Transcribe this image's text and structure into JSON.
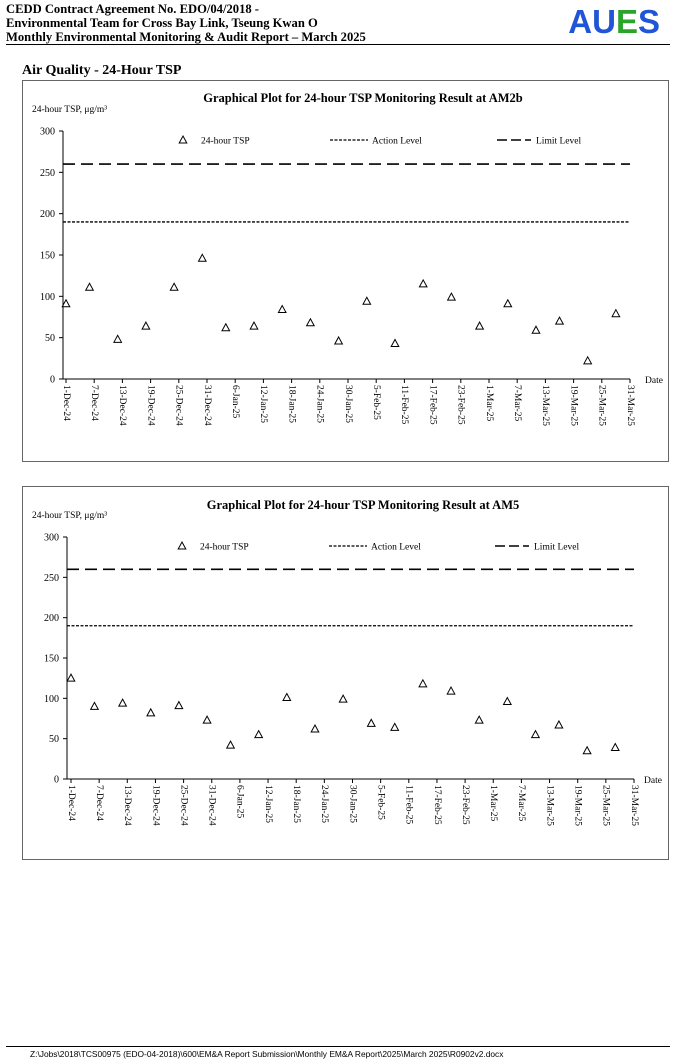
{
  "header": {
    "line1": "CEDD Contract Agreement No. EDO/04/2018 -",
    "line2": "Environmental Team for Cross Bay Link, Tseung Kwan O",
    "line3": "Monthly Environmental Monitoring & Audit Report – March 2025",
    "logo": {
      "letters": [
        "A",
        "U",
        "E",
        "S"
      ],
      "colors": [
        "#1f55d6",
        "#1f55d6",
        "#2aa52a",
        "#1f55d6"
      ]
    }
  },
  "section_title": "Air Quality - 24-Hour TSP",
  "footer": "Z:\\Jobs\\2018\\TCS00975 (EDO-04-2018)\\600\\EM&A Report Submission\\Monthly EM&A Report\\2025\\March 2025\\R0902v2.docx",
  "chart_data": [
    {
      "type": "scatter",
      "title": "Graphical Plot for 24-hour TSP Monitoring Result at AM2b",
      "ylabel": "24-hour TSP, μg/m³",
      "xlabel": "Date",
      "ylim": [
        0,
        300
      ],
      "yticks": [
        0,
        50,
        100,
        150,
        200,
        250,
        300
      ],
      "x_range": [
        "1-Dec-24",
        "31-Mar-25"
      ],
      "xtick_labels": [
        "1-Dec-24",
        "7-Dec-24",
        "13-Dec-24",
        "19-Dec-24",
        "25-Dec-24",
        "31-Dec-24",
        "6-Jan-25",
        "12-Jan-25",
        "18-Jan-25",
        "24-Jan-25",
        "30-Jan-25",
        "5-Feb-25",
        "11-Feb-25",
        "17-Feb-25",
        "23-Feb-25",
        "1-Mar-25",
        "7-Mar-25",
        "13-Mar-25",
        "19-Mar-25",
        "25-Mar-25",
        "31-Mar-25"
      ],
      "legend": [
        "24-hour TSP",
        "Action Level",
        "Limit Level"
      ],
      "action_level": 190,
      "limit_level": 260,
      "series": [
        {
          "name": "24-hour TSP",
          "x": [
            "1-Dec-24",
            "6-Dec-24",
            "12-Dec-24",
            "18-Dec-24",
            "24-Dec-24",
            "30-Dec-24",
            "4-Jan-25",
            "10-Jan-25",
            "16-Jan-25",
            "22-Jan-25",
            "28-Jan-25",
            "3-Feb-25",
            "9-Feb-25",
            "15-Feb-25",
            "21-Feb-25",
            "27-Feb-25",
            "5-Mar-25",
            "11-Mar-25",
            "16-Mar-25",
            "22-Mar-25",
            "28-Mar-25"
          ],
          "values": [
            91,
            111,
            48,
            64,
            111,
            146,
            62,
            64,
            84,
            68,
            46,
            94,
            43,
            115,
            99,
            64,
            91,
            59,
            70,
            22,
            79
          ]
        }
      ]
    },
    {
      "type": "scatter",
      "title": "Graphical Plot for 24-hour TSP Monitoring Result at AM5",
      "ylabel": "24-hour TSP, μg/m³",
      "xlabel": "Date",
      "ylim": [
        0,
        300
      ],
      "yticks": [
        0,
        50,
        100,
        150,
        200,
        250,
        300
      ],
      "x_range": [
        "1-Dec-24",
        "31-Mar-25"
      ],
      "xtick_labels": [
        "1-Dec-24",
        "7-Dec-24",
        "13-Dec-24",
        "19-Dec-24",
        "25-Dec-24",
        "31-Dec-24",
        "6-Jan-25",
        "12-Jan-25",
        "18-Jan-25",
        "24-Jan-25",
        "30-Jan-25",
        "5-Feb-25",
        "11-Feb-25",
        "17-Feb-25",
        "23-Feb-25",
        "1-Mar-25",
        "7-Mar-25",
        "13-Mar-25",
        "19-Mar-25",
        "25-Mar-25",
        "31-Mar-25"
      ],
      "legend": [
        "24-hour TSP",
        "Action Level",
        "Limit Level"
      ],
      "action_level": 190,
      "limit_level": 260,
      "series": [
        {
          "name": "24-hour TSP",
          "x": [
            "1-Dec-24",
            "6-Dec-24",
            "12-Dec-24",
            "18-Dec-24",
            "24-Dec-24",
            "30-Dec-24",
            "4-Jan-25",
            "10-Jan-25",
            "16-Jan-25",
            "22-Jan-25",
            "28-Jan-25",
            "3-Feb-25",
            "8-Feb-25",
            "14-Feb-25",
            "20-Feb-25",
            "26-Feb-25",
            "4-Mar-25",
            "10-Mar-25",
            "15-Mar-25",
            "21-Mar-25",
            "27-Mar-25"
          ],
          "values": [
            125,
            90,
            94,
            82,
            91,
            73,
            42,
            55,
            101,
            62,
            99,
            69,
            64,
            118,
            109,
            73,
            96,
            55,
            67,
            35,
            39
          ]
        }
      ]
    }
  ]
}
